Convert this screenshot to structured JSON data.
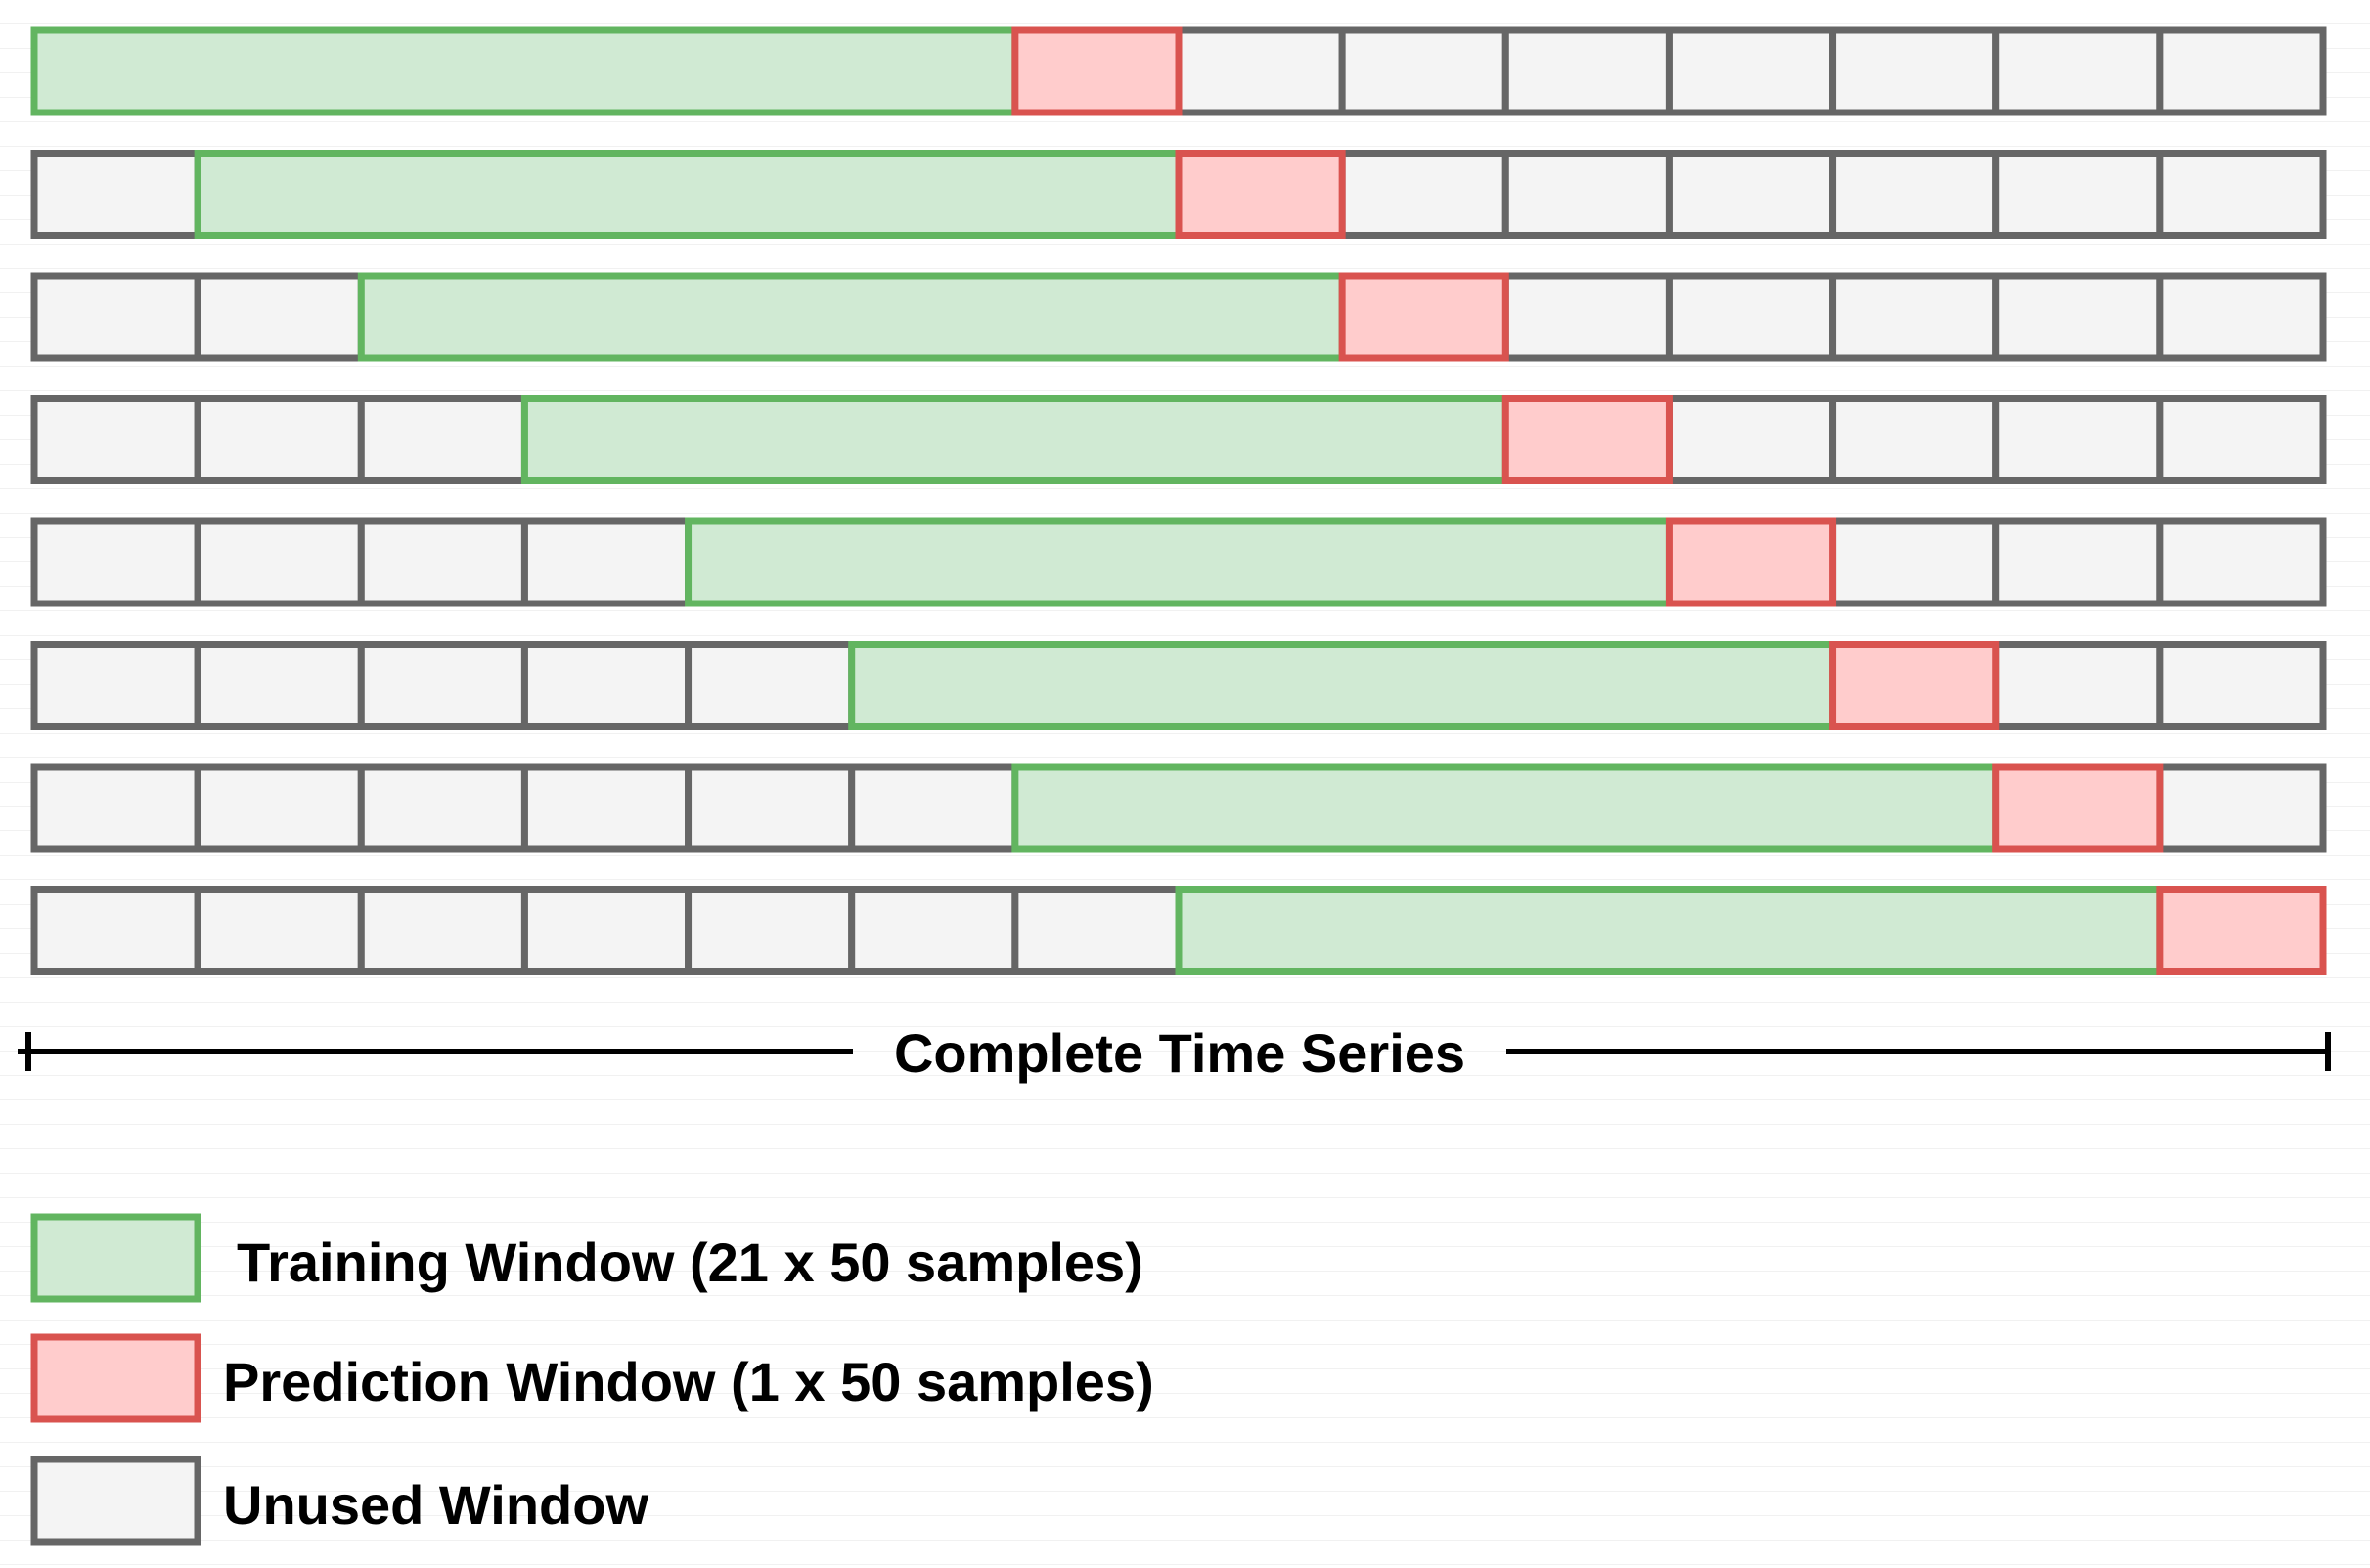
{
  "diagram": {
    "segments_per_row": 14,
    "training_length": 6,
    "prediction_length": 1,
    "rows": [
      {
        "training_start": 0
      },
      {
        "training_start": 1
      },
      {
        "training_start": 2
      },
      {
        "training_start": 3
      },
      {
        "training_start": 4
      },
      {
        "training_start": 5
      },
      {
        "training_start": 6
      },
      {
        "training_start": 7
      }
    ]
  },
  "axis": {
    "label": "Complete Time Series"
  },
  "legend": {
    "items": [
      {
        "key": "training",
        "label": "Training Window (21 x 50 samples)"
      },
      {
        "key": "prediction",
        "label": "Prediction Window (1 x 50 samples)"
      },
      {
        "key": "unused",
        "label": "Unused Window"
      }
    ]
  },
  "colors": {
    "training_fill": "#d0ead3",
    "training_stroke": "#62b560",
    "prediction_fill": "#ffcccc",
    "prediction_stroke": "#d9534f",
    "unused_fill": "#f4f4f4",
    "unused_stroke": "#666666",
    "axis": "#000000"
  }
}
